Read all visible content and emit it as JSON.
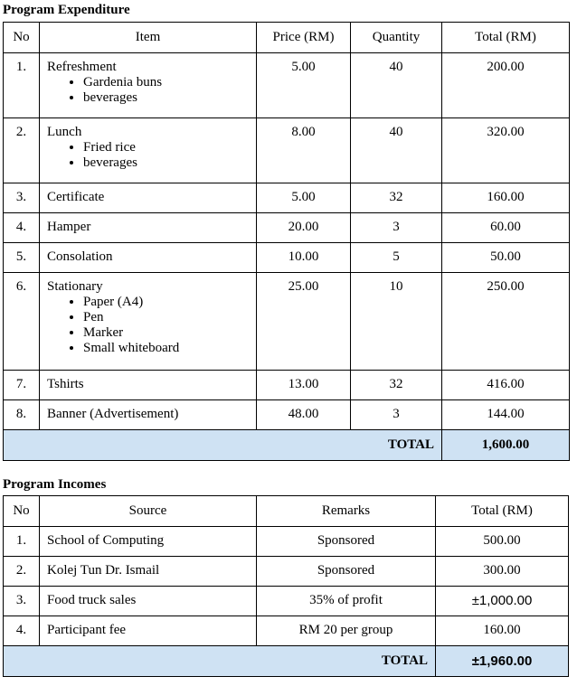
{
  "expenditure": {
    "title": "Program Expenditure",
    "headers": [
      "No",
      "Item",
      "Price (RM)",
      "Quantity",
      "Total (RM)"
    ],
    "rows": [
      {
        "no": "1.",
        "item": "Refreshment",
        "sub": [
          "Gardenia buns",
          "beverages"
        ],
        "price": "5.00",
        "qty": "40",
        "total": "200.00"
      },
      {
        "no": "2.",
        "item": "Lunch",
        "sub": [
          "Fried rice",
          "beverages"
        ],
        "price": "8.00",
        "qty": "40",
        "total": "320.00"
      },
      {
        "no": "3.",
        "item": "Certificate",
        "sub": [],
        "price": "5.00",
        "qty": "32",
        "total": "160.00"
      },
      {
        "no": "4.",
        "item": "Hamper",
        "sub": [],
        "price": "20.00",
        "qty": "3",
        "total": "60.00"
      },
      {
        "no": "5.",
        "item": "Consolation",
        "sub": [],
        "price": "10.00",
        "qty": "5",
        "total": "50.00"
      },
      {
        "no": "6.",
        "item": "Stationary",
        "sub": [
          "Paper (A4)",
          "Pen",
          "Marker",
          "Small whiteboard"
        ],
        "price": "25.00",
        "qty": "10",
        "total": "250.00"
      },
      {
        "no": "7.",
        "item": "Tshirts",
        "sub": [],
        "price": "13.00",
        "qty": "32",
        "total": "416.00"
      },
      {
        "no": "8.",
        "item": "Banner (Advertisement)",
        "sub": [],
        "price": "48.00",
        "qty": "3",
        "total": "144.00"
      }
    ],
    "total_label": "TOTAL",
    "total": "1,600.00"
  },
  "incomes": {
    "title": "Program Incomes",
    "headers": [
      "No",
      "Source",
      "Remarks",
      "Total (RM)"
    ],
    "rows": [
      {
        "no": "1.",
        "source": "School of Computing",
        "remarks": "Sponsored",
        "total": "500.00"
      },
      {
        "no": "2.",
        "source": "Kolej Tun Dr. Ismail",
        "remarks": "Sponsored",
        "total": "300.00"
      },
      {
        "no": "3.",
        "source": "Food truck sales",
        "remarks": "35% of profit",
        "total": "±1,000.00"
      },
      {
        "no": "4.",
        "source": "Participant fee",
        "remarks": "RM 20 per group",
        "total": "160.00"
      }
    ],
    "total_label": "TOTAL",
    "total": "±1,960.00"
  },
  "colors": {
    "total_row": "#cfe2f3"
  }
}
